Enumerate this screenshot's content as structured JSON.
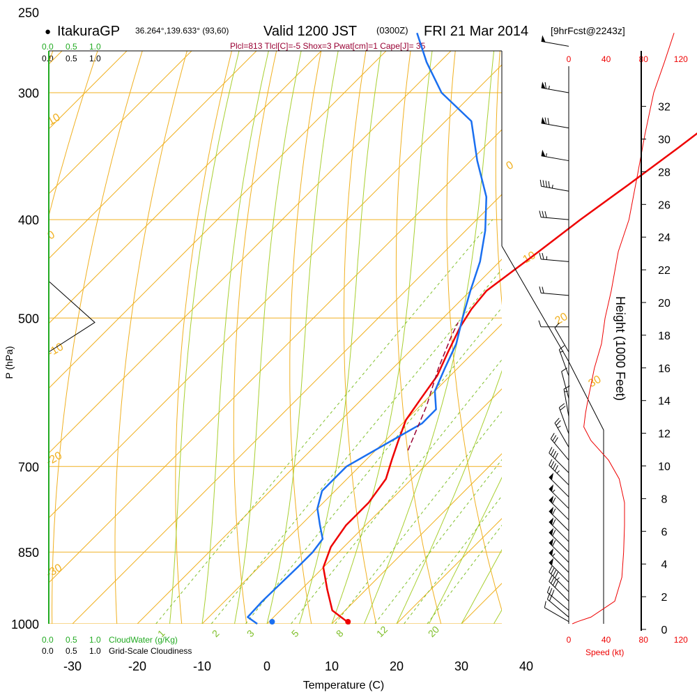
{
  "header": {
    "dot": "●",
    "site": "ItakuraGP",
    "coords": "36.264°,139.633° (93,60)",
    "valid": "Valid 1200 JST",
    "utc": "(0300Z)",
    "date": "FRI 21 Mar 2014",
    "forecast": "[9hrFcst@2243z]"
  },
  "indices": "Plcl=813 Tlcl[C]=-5 Shox=3 Pwat[cm]=1 Cape[J]= 35",
  "colors": {
    "isotherm": "#f0b020",
    "mixing_ratio": "#7fbf2a",
    "dry_adiabat": "#f0b020",
    "moist_adiabat": "#a8cf30",
    "temperature": "#ee0000",
    "dewpoint": "#1a6ff0",
    "parcel": "#990033",
    "cloud_green": "#22aa22",
    "speed_red": "#ee0000",
    "indices_color": "#990033"
  },
  "chart_data": {
    "type": "line",
    "title": "",
    "xlabel": "Temperature (C)",
    "ylabel": "P (hPa)",
    "right_ylabel": "Height (1000 Feet)",
    "speed_label": "Speed (kt)",
    "xlim": [
      -35,
      45
    ],
    "ylim_hpa": [
      1000,
      250
    ],
    "x_ticks": [
      -30,
      -20,
      -10,
      0,
      10,
      20,
      30,
      40
    ],
    "pressure_ticks": [
      250,
      300,
      400,
      500,
      700,
      850,
      1000
    ],
    "height_ticks": [
      0,
      2,
      4,
      6,
      8,
      10,
      12,
      14,
      16,
      18,
      20,
      22,
      24,
      26,
      28,
      30,
      32
    ],
    "speed_ticks": [
      0,
      40,
      80,
      120
    ],
    "cloud_water_label": "CloudWater (g/Kg)",
    "cloudiness_label": "Grid-Scale Cloudiness",
    "cloud_scale": [
      "0.0",
      "0.5",
      "1.0"
    ],
    "isotherm_labels": [
      "10",
      "0",
      "-10",
      "-20",
      "-30",
      "0",
      "10",
      "20",
      "30"
    ],
    "mixing_ratio_labels": [
      "1",
      "2",
      "3",
      "5",
      "8",
      "12",
      "20"
    ],
    "series": [
      {
        "name": "",
        "key": "temperature",
        "points": [
          [
            12.8,
            1000
          ],
          [
            8,
            970
          ],
          [
            4,
            925
          ],
          [
            0,
            880
          ],
          [
            -2,
            840
          ],
          [
            -3,
            800
          ],
          [
            -3,
            760
          ],
          [
            -4,
            720
          ],
          [
            -6,
            690
          ],
          [
            -8,
            660
          ],
          [
            -10,
            630
          ],
          [
            -11,
            600
          ],
          [
            -12,
            570
          ],
          [
            -14,
            540
          ],
          [
            -16,
            510
          ],
          [
            -17,
            490
          ],
          [
            -17.5,
            470
          ],
          [
            -15.5,
            430
          ],
          [
            -14,
            400
          ],
          [
            -12,
            370
          ],
          [
            -10,
            340
          ],
          [
            -8,
            310
          ],
          [
            -6,
            280
          ],
          [
            -4,
            262
          ]
        ]
      },
      {
        "name": "",
        "key": "dewpoint",
        "points": [
          [
            -1.5,
            1000
          ],
          [
            -4,
            985
          ],
          [
            -4.2,
            950
          ],
          [
            -4,
            880
          ],
          [
            -4,
            850
          ],
          [
            -4.5,
            825
          ],
          [
            -7,
            800
          ],
          [
            -10,
            770
          ],
          [
            -12,
            740
          ],
          [
            -12,
            700
          ],
          [
            -9,
            660
          ],
          [
            -7,
            635
          ],
          [
            -7,
            615
          ],
          [
            -10,
            590
          ],
          [
            -12,
            560
          ],
          [
            -14,
            530
          ],
          [
            -17,
            500
          ],
          [
            -20,
            470
          ],
          [
            -23,
            440
          ],
          [
            -27,
            410
          ],
          [
            -32,
            380
          ],
          [
            -39,
            350
          ],
          [
            -46,
            320
          ],
          [
            -55,
            300
          ],
          [
            -62,
            280
          ],
          [
            -68,
            262
          ]
        ]
      },
      {
        "name": "",
        "key": "parcel",
        "points": [
          [
            -5,
            675
          ],
          [
            -9,
            610
          ],
          [
            -13,
            560
          ],
          [
            -16,
            520
          ],
          [
            -17,
            505
          ]
        ]
      }
    ],
    "surface_temperature_c": 12.5,
    "surface_dewpoint_c": 0.8,
    "cloudiness_profile": [
      [
        1000,
        0
      ],
      [
        460,
        0
      ],
      [
        505,
        1.0
      ],
      [
        540,
        0
      ]
    ],
    "wind_speed_profile_kt": [
      [
        1000,
        4
      ],
      [
        995,
        10
      ],
      [
        985,
        25
      ],
      [
        950,
        52
      ],
      [
        900,
        60
      ],
      [
        850,
        62
      ],
      [
        800,
        63
      ],
      [
        760,
        63
      ],
      [
        720,
        57
      ],
      [
        690,
        45
      ],
      [
        660,
        25
      ],
      [
        640,
        17
      ],
      [
        620,
        19
      ],
      [
        600,
        22
      ],
      [
        560,
        29
      ],
      [
        530,
        37
      ],
      [
        500,
        41
      ],
      [
        470,
        48
      ],
      [
        430,
        56
      ],
      [
        400,
        68
      ],
      [
        360,
        78
      ],
      [
        330,
        86
      ],
      [
        300,
        96
      ],
      [
        280,
        108
      ],
      [
        262,
        119
      ]
    ],
    "wind_barbs": [
      {
        "p": 270,
        "speed": 50,
        "dir": 280
      },
      {
        "p": 300,
        "speed": 65,
        "dir": 280
      },
      {
        "p": 325,
        "speed": 70,
        "dir": 280
      },
      {
        "p": 350,
        "speed": 55,
        "dir": 280
      },
      {
        "p": 375,
        "speed": 45,
        "dir": 280
      },
      {
        "p": 400,
        "speed": 30,
        "dir": 275
      },
      {
        "p": 440,
        "speed": 25,
        "dir": 275
      },
      {
        "p": 475,
        "speed": 20,
        "dir": 275
      },
      {
        "p": 510,
        "speed": 10,
        "dir": 270
      },
      {
        "p": 540,
        "speed": 10,
        "dir": 330
      },
      {
        "p": 570,
        "speed": 15,
        "dir": 340
      },
      {
        "p": 600,
        "speed": 10,
        "dir": 345
      },
      {
        "p": 625,
        "speed": 15,
        "dir": 350
      },
      {
        "p": 650,
        "speed": 20,
        "dir": 340
      },
      {
        "p": 670,
        "speed": 25,
        "dir": 330
      },
      {
        "p": 690,
        "speed": 30,
        "dir": 320
      },
      {
        "p": 710,
        "speed": 40,
        "dir": 315
      },
      {
        "p": 730,
        "speed": 45,
        "dir": 315
      },
      {
        "p": 750,
        "speed": 50,
        "dir": 315
      },
      {
        "p": 770,
        "speed": 55,
        "dir": 315
      },
      {
        "p": 790,
        "speed": 60,
        "dir": 315
      },
      {
        "p": 810,
        "speed": 60,
        "dir": 315
      },
      {
        "p": 830,
        "speed": 60,
        "dir": 315
      },
      {
        "p": 850,
        "speed": 60,
        "dir": 315
      },
      {
        "p": 870,
        "speed": 60,
        "dir": 315
      },
      {
        "p": 890,
        "speed": 55,
        "dir": 315
      },
      {
        "p": 910,
        "speed": 50,
        "dir": 315
      },
      {
        "p": 930,
        "speed": 45,
        "dir": 315
      },
      {
        "p": 950,
        "speed": 40,
        "dir": 315
      },
      {
        "p": 970,
        "speed": 30,
        "dir": 310
      },
      {
        "p": 985,
        "speed": 20,
        "dir": 310
      },
      {
        "p": 995,
        "speed": 10,
        "dir": 300
      }
    ],
    "grid": true
  }
}
